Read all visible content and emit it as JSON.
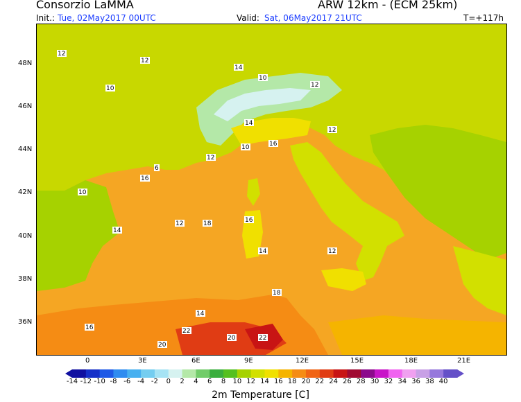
{
  "header": {
    "org": "Consorzio LaMMA",
    "model": "ARW 12km  -  (ECM 25km)",
    "init_label": "Init.:",
    "init_value": "Tue, 02May2017 00UTC",
    "valid_label": "Valid:",
    "valid_value": "Sat, 06May2017 21UTC",
    "lead": "T=+117h"
  },
  "map": {
    "lon_labels": [
      "0",
      "3E",
      "6E",
      "9E",
      "12E",
      "15E",
      "18E",
      "21E"
    ],
    "lat_labels": [
      "48N",
      "46N",
      "44N",
      "42N",
      "40N",
      "38N",
      "36N"
    ],
    "sea_color": "#f5a623",
    "land_color": "#c8d800",
    "field_labels": [
      "12",
      "10",
      "12",
      "14",
      "10",
      "12",
      "12",
      "14",
      "16",
      "10",
      "12",
      "6",
      "12",
      "10",
      "14",
      "16",
      "18",
      "16",
      "14",
      "12",
      "20",
      "22",
      "20",
      "22",
      "14",
      "16",
      "18"
    ]
  },
  "colorbar": {
    "title": "2m Temperature [C]",
    "ticks": [
      "-14",
      "-12",
      "-10",
      "-8",
      "-6",
      "-4",
      "-2",
      "0",
      "2",
      "4",
      "6",
      "8",
      "10",
      "12",
      "14",
      "16",
      "18",
      "20",
      "22",
      "24",
      "26",
      "28",
      "30",
      "32",
      "34",
      "36",
      "38",
      "40"
    ],
    "colors": [
      "#1010a0",
      "#1630c8",
      "#1f5ae6",
      "#2f8cf0",
      "#48b0f0",
      "#74cdf0",
      "#a6e3f4",
      "#d6f2f0",
      "#b4e8a8",
      "#72cc6a",
      "#3aae3e",
      "#55c020",
      "#a6d200",
      "#d2e000",
      "#f0e000",
      "#f5b400",
      "#f58c14",
      "#f06414",
      "#e03c14",
      "#c81414",
      "#a00a32",
      "#8c0a8c",
      "#c814c8",
      "#f064f0",
      "#f0a0f0",
      "#c8a0e6",
      "#9678dc",
      "#6450c8"
    ]
  }
}
